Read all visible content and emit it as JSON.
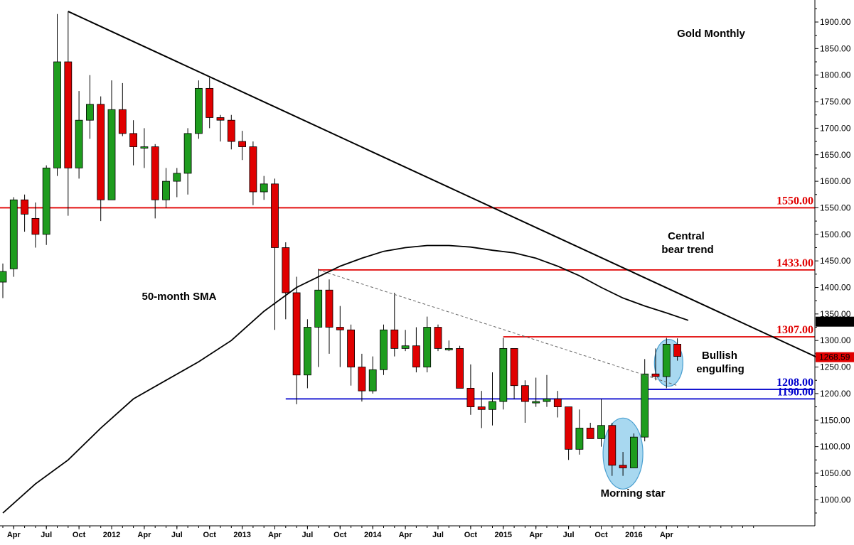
{
  "chart_data": {
    "type": "candlestick",
    "title": "Gold Monthly",
    "instrument": "Gold",
    "timeframe": "Monthly",
    "y_axis": {
      "min": 950,
      "max": 1925,
      "position": "right",
      "ticks": [
        "1900.00",
        "1850.00",
        "1800.00",
        "1750.00",
        "1700.00",
        "1650.00",
        "1600.00",
        "1550.00",
        "1500.00",
        "1450.00",
        "1400.00",
        "1350.00",
        "1300.00",
        "1250.00",
        "1200.00",
        "1150.00",
        "1100.00",
        "1050.00",
        "1000.00"
      ]
    },
    "x_axis": {
      "labels": [
        "Apr",
        "Jul",
        "Oct",
        "2012",
        "Apr",
        "Jul",
        "Oct",
        "2013",
        "Apr",
        "Jul",
        "Oct",
        "2014",
        "Apr",
        "Jul",
        "Oct",
        "2015",
        "Apr",
        "Jul",
        "Oct",
        "2016",
        "Apr"
      ]
    },
    "candles": [
      {
        "o": 1410,
        "h": 1445,
        "l": 1380,
        "c": 1430
      },
      {
        "o": 1435,
        "h": 1570,
        "l": 1420,
        "c": 1565
      },
      {
        "o": 1565,
        "h": 1575,
        "l": 1505,
        "c": 1538
      },
      {
        "o": 1530,
        "h": 1560,
        "l": 1475,
        "c": 1500
      },
      {
        "o": 1500,
        "h": 1630,
        "l": 1480,
        "c": 1625
      },
      {
        "o": 1625,
        "h": 1915,
        "l": 1610,
        "c": 1825
      },
      {
        "o": 1825,
        "h": 1920,
        "l": 1535,
        "c": 1625
      },
      {
        "o": 1625,
        "h": 1770,
        "l": 1605,
        "c": 1715
      },
      {
        "o": 1715,
        "h": 1800,
        "l": 1680,
        "c": 1745
      },
      {
        "o": 1745,
        "h": 1760,
        "l": 1525,
        "c": 1565
      },
      {
        "o": 1565,
        "h": 1790,
        "l": 1565,
        "c": 1735
      },
      {
        "o": 1735,
        "h": 1785,
        "l": 1685,
        "c": 1690
      },
      {
        "o": 1690,
        "h": 1715,
        "l": 1630,
        "c": 1665
      },
      {
        "o": 1665,
        "h": 1700,
        "l": 1625,
        "c": 1665
      },
      {
        "o": 1665,
        "h": 1670,
        "l": 1530,
        "c": 1565
      },
      {
        "o": 1565,
        "h": 1625,
        "l": 1550,
        "c": 1600
      },
      {
        "o": 1600,
        "h": 1625,
        "l": 1570,
        "c": 1615
      },
      {
        "o": 1615,
        "h": 1700,
        "l": 1575,
        "c": 1690
      },
      {
        "o": 1690,
        "h": 1790,
        "l": 1680,
        "c": 1775
      },
      {
        "o": 1775,
        "h": 1795,
        "l": 1700,
        "c": 1720
      },
      {
        "o": 1720,
        "h": 1725,
        "l": 1675,
        "c": 1715
      },
      {
        "o": 1715,
        "h": 1725,
        "l": 1660,
        "c": 1675
      },
      {
        "o": 1675,
        "h": 1695,
        "l": 1640,
        "c": 1665
      },
      {
        "o": 1665,
        "h": 1675,
        "l": 1555,
        "c": 1580
      },
      {
        "o": 1580,
        "h": 1610,
        "l": 1565,
        "c": 1595
      },
      {
        "o": 1595,
        "h": 1605,
        "l": 1320,
        "c": 1475
      },
      {
        "o": 1475,
        "h": 1485,
        "l": 1340,
        "c": 1390
      },
      {
        "o": 1390,
        "h": 1420,
        "l": 1180,
        "c": 1235
      },
      {
        "o": 1235,
        "h": 1340,
        "l": 1210,
        "c": 1325
      },
      {
        "o": 1325,
        "h": 1435,
        "l": 1250,
        "c": 1395
      },
      {
        "o": 1395,
        "h": 1415,
        "l": 1275,
        "c": 1325
      },
      {
        "o": 1325,
        "h": 1365,
        "l": 1250,
        "c": 1320
      },
      {
        "o": 1320,
        "h": 1330,
        "l": 1215,
        "c": 1250
      },
      {
        "o": 1250,
        "h": 1275,
        "l": 1185,
        "c": 1205
      },
      {
        "o": 1205,
        "h": 1270,
        "l": 1200,
        "c": 1245
      },
      {
        "o": 1245,
        "h": 1330,
        "l": 1235,
        "c": 1320
      },
      {
        "o": 1320,
        "h": 1390,
        "l": 1270,
        "c": 1285
      },
      {
        "o": 1285,
        "h": 1320,
        "l": 1280,
        "c": 1290
      },
      {
        "o": 1290,
        "h": 1325,
        "l": 1240,
        "c": 1250
      },
      {
        "o": 1250,
        "h": 1345,
        "l": 1240,
        "c": 1325
      },
      {
        "o": 1325,
        "h": 1330,
        "l": 1280,
        "c": 1285
      },
      {
        "o": 1285,
        "h": 1300,
        "l": 1280,
        "c": 1285
      },
      {
        "o": 1285,
        "h": 1290,
        "l": 1210,
        "c": 1210
      },
      {
        "o": 1210,
        "h": 1255,
        "l": 1160,
        "c": 1175
      },
      {
        "o": 1175,
        "h": 1205,
        "l": 1135,
        "c": 1170
      },
      {
        "o": 1170,
        "h": 1240,
        "l": 1140,
        "c": 1185
      },
      {
        "o": 1185,
        "h": 1305,
        "l": 1170,
        "c": 1285
      },
      {
        "o": 1285,
        "h": 1285,
        "l": 1190,
        "c": 1215
      },
      {
        "o": 1215,
        "h": 1225,
        "l": 1145,
        "c": 1185
      },
      {
        "o": 1185,
        "h": 1230,
        "l": 1175,
        "c": 1185
      },
      {
        "o": 1185,
        "h": 1235,
        "l": 1175,
        "c": 1190
      },
      {
        "o": 1190,
        "h": 1205,
        "l": 1155,
        "c": 1175
      },
      {
        "o": 1175,
        "h": 1175,
        "l": 1075,
        "c": 1095
      },
      {
        "o": 1095,
        "h": 1170,
        "l": 1085,
        "c": 1135
      },
      {
        "o": 1135,
        "h": 1145,
        "l": 1115,
        "c": 1115
      },
      {
        "o": 1115,
        "h": 1190,
        "l": 1100,
        "c": 1140
      },
      {
        "o": 1140,
        "h": 1145,
        "l": 1045,
        "c": 1065
      },
      {
        "o": 1065,
        "h": 1090,
        "l": 1045,
        "c": 1060
      },
      {
        "o": 1060,
        "h": 1125,
        "l": 1060,
        "c": 1118
      },
      {
        "o": 1118,
        "h": 1265,
        "l": 1110,
        "c": 1237
      },
      {
        "o": 1237,
        "h": 1285,
        "l": 1225,
        "c": 1232
      },
      {
        "o": 1232,
        "h": 1305,
        "l": 1210,
        "c": 1293
      },
      {
        "o": 1293,
        "h": 1304,
        "l": 1262,
        "c": 1270
      }
    ],
    "sma": {
      "label": "50-month SMA",
      "current_value": "1335.49",
      "points": [
        {
          "i": 0,
          "v": 975
        },
        {
          "i": 3,
          "v": 1030
        },
        {
          "i": 6,
          "v": 1075
        },
        {
          "i": 9,
          "v": 1135
        },
        {
          "i": 12,
          "v": 1190
        },
        {
          "i": 15,
          "v": 1225
        },
        {
          "i": 18,
          "v": 1260
        },
        {
          "i": 21,
          "v": 1300
        },
        {
          "i": 24,
          "v": 1355
        },
        {
          "i": 27,
          "v": 1400
        },
        {
          "i": 29,
          "v": 1420
        },
        {
          "i": 31,
          "v": 1440
        },
        {
          "i": 33,
          "v": 1455
        },
        {
          "i": 35,
          "v": 1468
        },
        {
          "i": 37,
          "v": 1475
        },
        {
          "i": 39,
          "v": 1479
        },
        {
          "i": 41,
          "v": 1479
        },
        {
          "i": 43,
          "v": 1476
        },
        {
          "i": 45,
          "v": 1470
        },
        {
          "i": 47,
          "v": 1465
        },
        {
          "i": 49,
          "v": 1455
        },
        {
          "i": 51,
          "v": 1440
        },
        {
          "i": 53,
          "v": 1422
        },
        {
          "i": 55,
          "v": 1400
        },
        {
          "i": 57,
          "v": 1380
        },
        {
          "i": 59,
          "v": 1365
        },
        {
          "i": 61,
          "v": 1352
        },
        {
          "i": 63,
          "v": 1338
        }
      ]
    },
    "last_price": "1268.59",
    "levels": [
      {
        "value": 1550,
        "label": "1550.00",
        "color": "#e00000",
        "x_from": 0
      },
      {
        "value": 1433,
        "label": "1433.00",
        "color": "#e00000",
        "x_from": 29
      },
      {
        "value": 1307,
        "label": "1307.00",
        "color": "#e00000",
        "x_from": 46
      },
      {
        "value": 1208,
        "label": "1208.00",
        "color": "#0000cc",
        "x_from": 59
      },
      {
        "value": 1190,
        "label": "1190.00",
        "color": "#0000cc",
        "x_from": 26
      }
    ],
    "trendlines": [
      {
        "name": "central-bear-trend",
        "from": {
          "i": 6,
          "v": 1920
        },
        "to": {
          "i": 75.5,
          "v": 1262
        },
        "style": "solid"
      },
      {
        "name": "dashed-resistance",
        "from": {
          "i": 29,
          "v": 1433
        },
        "to": {
          "i": 62,
          "v": 1215
        },
        "style": "dashed"
      }
    ],
    "annotations": {
      "central_bear_trend": [
        "Central",
        "bear trend"
      ],
      "sma_label": "50-month SMA",
      "bullish_engulfing": [
        "Bullish",
        "engulfing"
      ],
      "morning_star": "Morning star"
    },
    "colors": {
      "bull": "#1e9c1e",
      "bear": "#e00000",
      "support": "#0000cc",
      "resistance": "#e00000",
      "highlight_fill": "#a8d8f0",
      "highlight_stroke": "#4a9fd0"
    }
  }
}
